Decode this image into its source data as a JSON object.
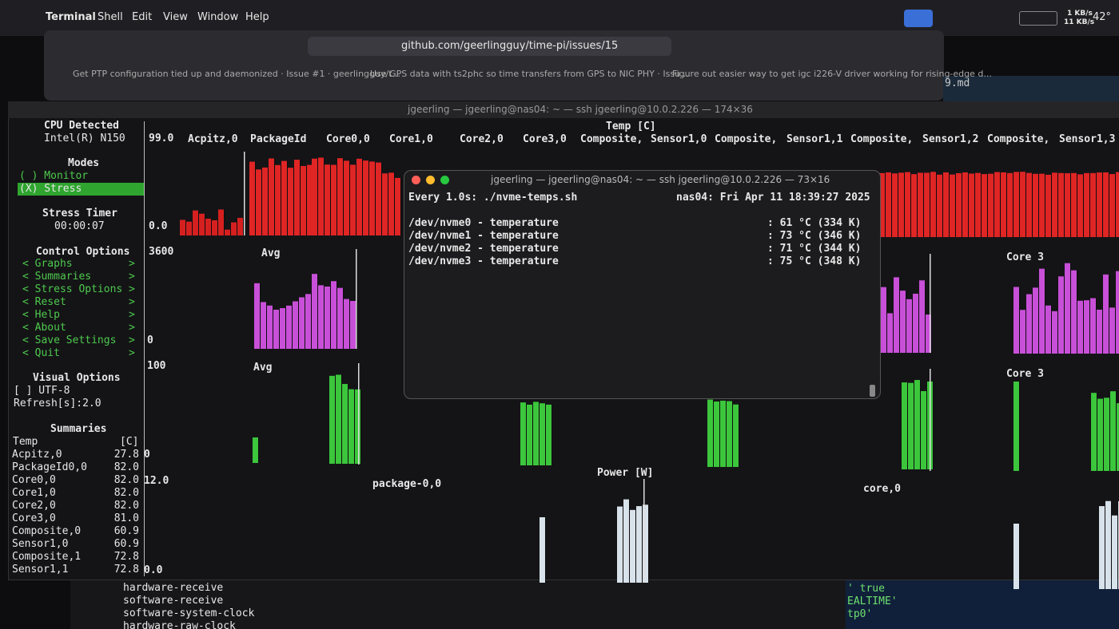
{
  "menubar": {
    "items": [
      "Terminal",
      "Shell",
      "Edit",
      "View",
      "Window",
      "Help"
    ],
    "net_up": "1 KB/s",
    "net_down": "11 KB/s",
    "temp": "42°"
  },
  "browser": {
    "url": "github.com/geerlingguy/time-pi/issues/15",
    "tabs": [
      "Get PTP configuration tied up and daemonized · Issue #1 · geerlingguy/t...",
      "Use GPS data with ts2phc so time transfers from GPS to NIC PHY · Issu...",
      "Figure out easier way to get igc i226-V driver working for rising-edge d..."
    ],
    "side_file": "9.md"
  },
  "stui": {
    "title": "jgeerling — jgeerling@nas04: ~ — ssh jgeerling@10.0.2.226 — 174×36",
    "cpu_title": "CPU Detected",
    "cpu": "Intel(R) N150",
    "modes_title": "Modes",
    "modes": [
      "( ) Monitor",
      "(X) Stress"
    ],
    "timer_title": "Stress Timer",
    "timer": "00:00:07",
    "control_title": "Control Options",
    "controls": [
      "< Graphs",
      "< Summaries",
      "< Stress Options",
      "< Reset",
      "< Help",
      "< About",
      "< Save Settings",
      "< Quit"
    ],
    "control_arrow": ">",
    "visual_title": "Visual Options",
    "visual": [
      "[ ] UTF-8",
      "Refresh[s]:2.0"
    ],
    "summaries_title": "Summaries",
    "summary_header": [
      "Temp",
      "[C]"
    ],
    "summary_rows": [
      [
        "Acpitz,0",
        "27.8"
      ],
      [
        "PackageId0,0",
        "82.0"
      ],
      [
        "Core0,0",
        "82.0"
      ],
      [
        "Core1,0",
        "82.0"
      ],
      [
        "Core2,0",
        "82.0"
      ],
      [
        "Core3,0",
        "81.0"
      ],
      [
        "Composite,0",
        "60.9"
      ],
      [
        "Sensor1,0",
        "60.9"
      ],
      [
        "Composite,1",
        "72.8"
      ],
      [
        "Sensor1,1",
        "72.8"
      ]
    ],
    "temp_title": "Temp [C]",
    "temp_columns": [
      "Acpitz,0",
      "PackageId",
      "Core0,0",
      "Core1,0",
      "Core2,0",
      "Core3,0",
      "Composite,",
      "Sensor1,0",
      "Composite,",
      "Sensor1,1",
      "Composite,",
      "Sensor1,2",
      "Composite,",
      "Sensor1,3"
    ],
    "axis_labels": [
      "99.0",
      "0.0",
      "3600",
      "0",
      "100",
      "0",
      "12.0",
      "0.0"
    ],
    "graph_labels": [
      "Avg",
      "Avg",
      "Core 3",
      "Core 3",
      "package-0,0",
      "Power [W]",
      "core,0"
    ]
  },
  "nvme": {
    "title": "jgeerling — jgeerling@nas04: ~ — ssh jgeerling@10.0.2.226 — 73×16",
    "header_left": "Every 1.0s: ./nvme-temps.sh",
    "header_right": "nas04: Fri Apr 11 18:39:27 2025",
    "rows": [
      [
        "/dev/nvme0 - temperature",
        ": 61 °C (334 K)"
      ],
      [
        "/dev/nvme1 - temperature",
        ": 73 °C (346 K)"
      ],
      [
        "/dev/nvme2 - temperature",
        ": 71 °C (344 K)"
      ],
      [
        "/dev/nvme3 - temperature",
        ": 75 °C (348 K)"
      ]
    ]
  },
  "background_terminal": {
    "lines": [
      "hardware-receive",
      "software-receive",
      "software-system-clock",
      "hardware-raw-clock"
    ],
    "right_lines": [
      "' true",
      "EALTIME'",
      "tp0'"
    ]
  }
}
